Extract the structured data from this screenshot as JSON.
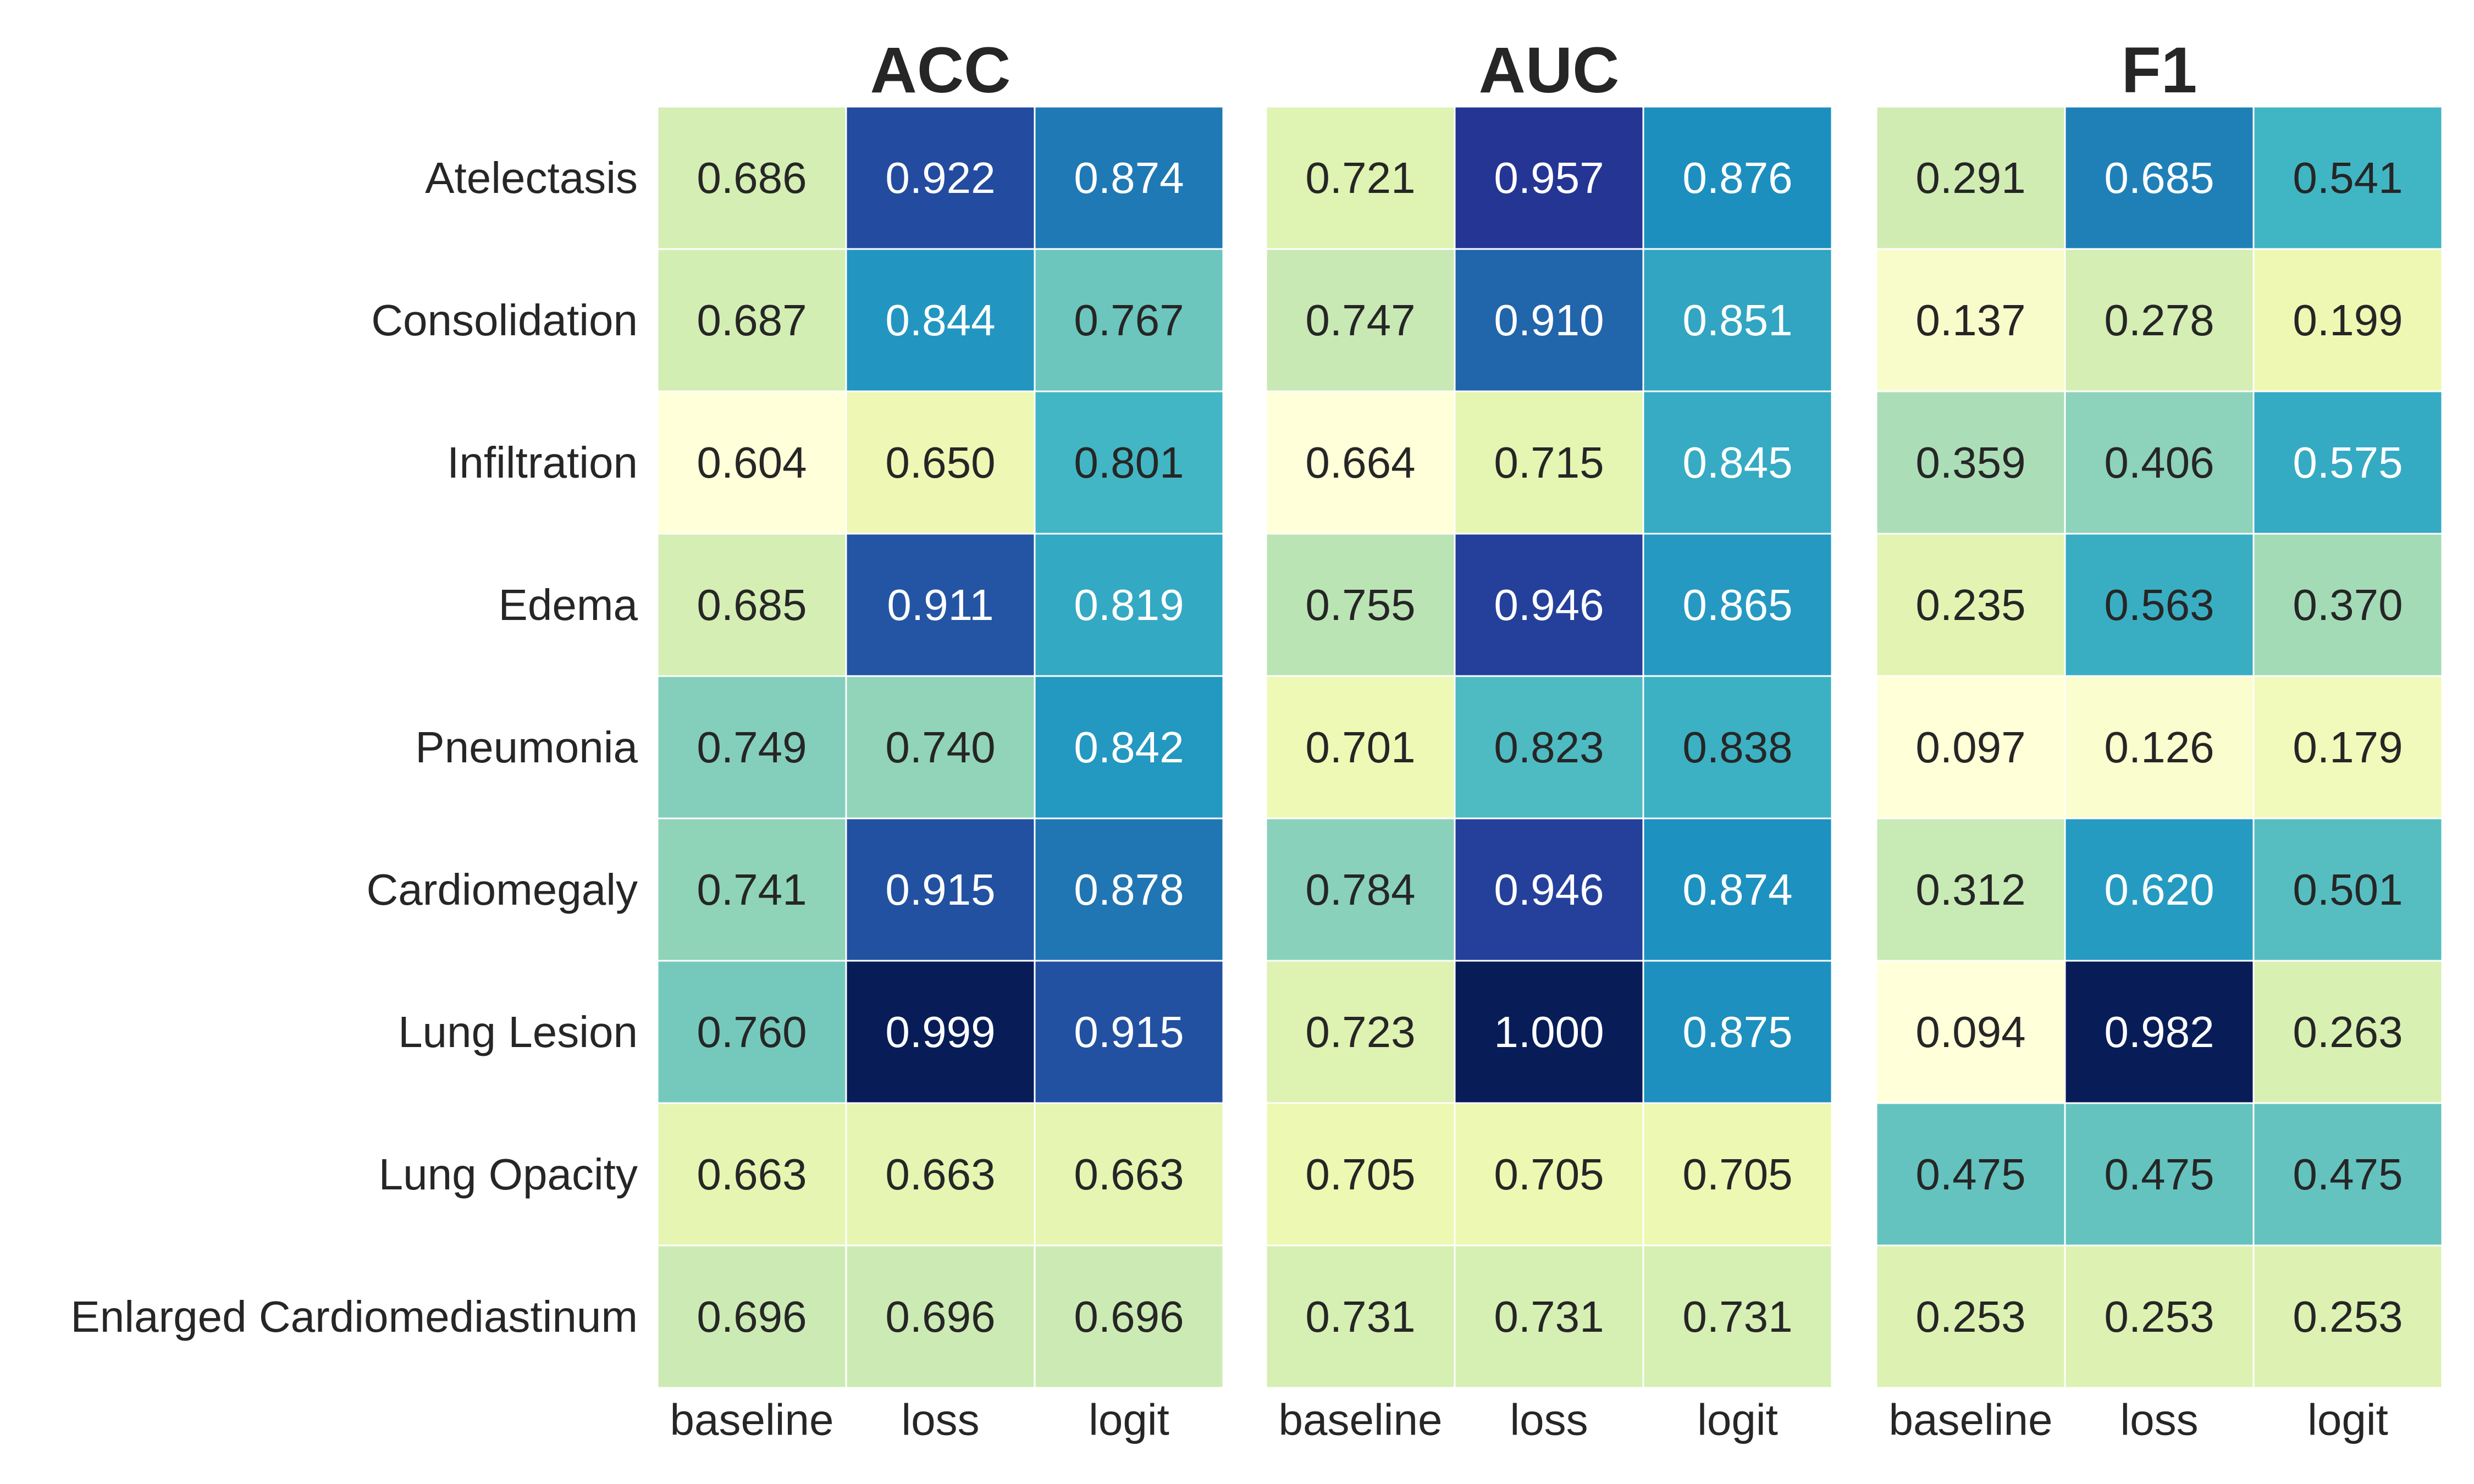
{
  "chart_data": {
    "type": "heatmap",
    "colormap": "YlGnBu",
    "rows": [
      "Atelectasis",
      "Consolidation",
      "Infiltration",
      "Edema",
      "Pneumonia",
      "Cardiomegaly",
      "Lung Lesion",
      "Lung Opacity",
      "Enlarged Cardiomediastinum"
    ],
    "columns": [
      "baseline",
      "loss",
      "logit"
    ],
    "panels": [
      {
        "title": "ACC",
        "values": [
          [
            0.686,
            0.922,
            0.874
          ],
          [
            0.687,
            0.844,
            0.767
          ],
          [
            0.604,
            0.65,
            0.801
          ],
          [
            0.685,
            0.911,
            0.819
          ],
          [
            0.749,
            0.74,
            0.842
          ],
          [
            0.741,
            0.915,
            0.878
          ],
          [
            0.76,
            0.999,
            0.915
          ],
          [
            0.663,
            0.663,
            0.663
          ],
          [
            0.696,
            0.696,
            0.696
          ]
        ],
        "labels": [
          [
            "0.686",
            "0.922",
            "0.874"
          ],
          [
            "0.687",
            "0.844",
            "0.767"
          ],
          [
            "0.604",
            "0.650",
            "0.801"
          ],
          [
            "0.685",
            "0.911",
            "0.819"
          ],
          [
            "0.749",
            "0.740",
            "0.842"
          ],
          [
            "0.741",
            "0.915",
            "0.878"
          ],
          [
            "0.760",
            "0.999",
            "0.915"
          ],
          [
            "0.663",
            "0.663",
            "0.663"
          ],
          [
            "0.696",
            "0.696",
            "0.696"
          ]
        ]
      },
      {
        "title": "AUC",
        "values": [
          [
            0.721,
            0.957,
            0.876
          ],
          [
            0.747,
            0.91,
            0.851
          ],
          [
            0.664,
            0.715,
            0.845
          ],
          [
            0.755,
            0.946,
            0.865
          ],
          [
            0.701,
            0.823,
            0.838
          ],
          [
            0.784,
            0.946,
            0.874
          ],
          [
            0.723,
            1.0,
            0.875
          ],
          [
            0.705,
            0.705,
            0.705
          ],
          [
            0.731,
            0.731,
            0.731
          ]
        ],
        "labels": [
          [
            "0.721",
            "0.957",
            "0.876"
          ],
          [
            "0.747",
            "0.910",
            "0.851"
          ],
          [
            "0.664",
            "0.715",
            "0.845"
          ],
          [
            "0.755",
            "0.946",
            "0.865"
          ],
          [
            "0.701",
            "0.823",
            "0.838"
          ],
          [
            "0.784",
            "0.946",
            "0.874"
          ],
          [
            "0.723",
            "1.000",
            "0.875"
          ],
          [
            "0.705",
            "0.705",
            "0.705"
          ],
          [
            "0.731",
            "0.731",
            "0.731"
          ]
        ]
      },
      {
        "title": "F1",
        "values": [
          [
            0.291,
            0.685,
            0.541
          ],
          [
            0.137,
            0.278,
            0.199
          ],
          [
            0.359,
            0.406,
            0.575
          ],
          [
            0.235,
            0.563,
            0.37
          ],
          [
            0.097,
            0.126,
            0.179
          ],
          [
            0.312,
            0.62,
            0.501
          ],
          [
            0.094,
            0.982,
            0.263
          ],
          [
            0.475,
            0.475,
            0.475
          ],
          [
            0.253,
            0.253,
            0.253
          ]
        ],
        "labels": [
          [
            "0.291",
            "0.685",
            "0.541"
          ],
          [
            "0.137",
            "0.278",
            "0.199"
          ],
          [
            "0.359",
            "0.406",
            "0.575"
          ],
          [
            "0.235",
            "0.563",
            "0.370"
          ],
          [
            "0.097",
            "0.126",
            "0.179"
          ],
          [
            "0.312",
            "0.620",
            "0.501"
          ],
          [
            "0.094",
            "0.982",
            "0.263"
          ],
          [
            "0.475",
            "0.475",
            "0.475"
          ],
          [
            "0.253",
            "0.253",
            "0.253"
          ]
        ]
      }
    ],
    "colorbar": false,
    "grid": false
  }
}
